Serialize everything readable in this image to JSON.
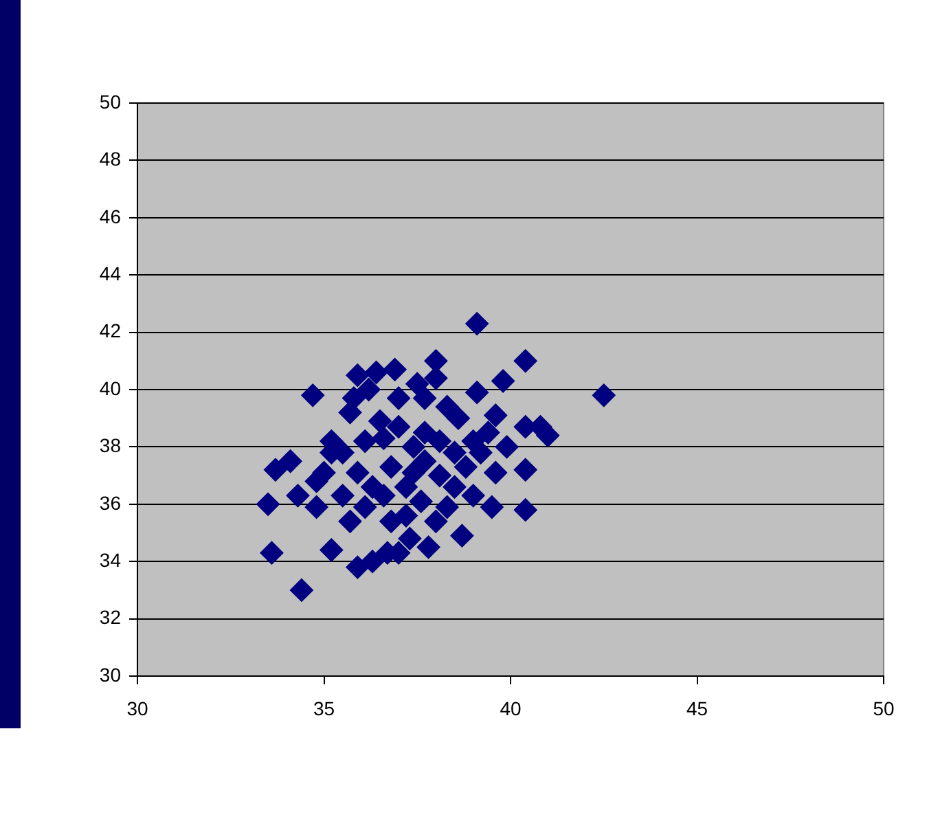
{
  "chart_data": {
    "type": "scatter",
    "marker": "diamond",
    "grid": "y",
    "legend": false,
    "xlim": [
      30,
      50
    ],
    "xticks": [
      30,
      35,
      40,
      45,
      50
    ],
    "ylim": [
      30,
      50
    ],
    "yticks": [
      30,
      32,
      34,
      36,
      38,
      40,
      42,
      44,
      46,
      48,
      50
    ],
    "series": [
      {
        "color": "#000080",
        "x": [
          33.5,
          33.6,
          34.4,
          34.7,
          35.2,
          33.7,
          34.1,
          34.3,
          34.8,
          35.0,
          35.2,
          35.9,
          36.4,
          36.9,
          35.9,
          36.3,
          36.7,
          37.0,
          37.3,
          37.5,
          38.0,
          38.0,
          39.1,
          40.4,
          39.8,
          39.1,
          39.6,
          42.5,
          40.4,
          41.0,
          40.8,
          40.4,
          40.4,
          39.6,
          39.5,
          38.7,
          37.8,
          39.9,
          35.5,
          35.7,
          36.5,
          36.1,
          37.0,
          37.4,
          37.7,
          38.1,
          38.5,
          36.8,
          37.2,
          37.6,
          38.0,
          38.3,
          38.8,
          39.0,
          38.6,
          38.3,
          36.8,
          37.2,
          35.9,
          36.3,
          35.5,
          36.6,
          37.7,
          37.0,
          39.2,
          39.4,
          39.0,
          38.1,
          38.5,
          37.7,
          37.4,
          36.6,
          36.1,
          35.7,
          35.2,
          34.8,
          35.8,
          36.2
        ],
        "values": [
          36.0,
          34.3,
          33.0,
          39.8,
          34.4,
          37.2,
          37.5,
          36.3,
          35.9,
          37.1,
          38.2,
          40.5,
          40.6,
          40.7,
          33.8,
          34.0,
          34.3,
          34.3,
          34.8,
          40.2,
          41.0,
          40.4,
          42.3,
          41.0,
          40.3,
          39.9,
          39.1,
          39.8,
          38.7,
          38.4,
          38.7,
          37.2,
          35.8,
          37.1,
          35.9,
          34.9,
          34.5,
          38.0,
          36.3,
          39.2,
          38.9,
          38.2,
          38.7,
          38.0,
          37.5,
          37.0,
          36.6,
          37.3,
          36.6,
          36.1,
          35.4,
          35.9,
          37.3,
          38.2,
          39.0,
          39.4,
          35.4,
          35.6,
          37.1,
          36.6,
          37.8,
          38.3,
          39.7,
          39.7,
          37.8,
          38.5,
          36.3,
          38.2,
          37.8,
          38.5,
          37.1,
          36.3,
          35.9,
          35.4,
          37.8,
          36.8,
          39.7,
          40.0
        ]
      }
    ]
  }
}
